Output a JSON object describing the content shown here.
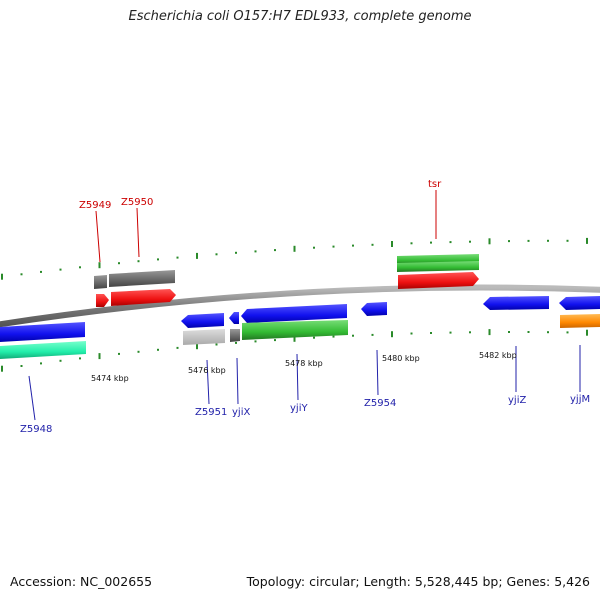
{
  "title": "Escherichia coli O157:H7 EDL933, complete genome",
  "footer": {
    "accession": "Accession: NC_002655",
    "info": "Topology: circular; Length: 5,528,445 bp; Genes: 5,426"
  },
  "scale_labels": [
    "5474 kbp",
    "5476 kbp",
    "5478 kbp",
    "5480 kbp",
    "5482 kbp"
  ],
  "gene_labels_top": [
    "Z5949",
    "Z5950",
    "tsr"
  ],
  "gene_labels_bottom": [
    "Z5948",
    "Z5951",
    "yjiX",
    "yjiY",
    "Z5954",
    "yjiZ",
    "yjjM"
  ],
  "colors": {
    "backbone": "#8a8a8a",
    "tick": "#2a8a2a",
    "cds_forward": "#ee1111",
    "cds_reverse": "#1111ee",
    "gene_forward": "#666666",
    "gene_reverse": "#bbbbbb",
    "label_red": "#cc0000",
    "label_blue": "#2222aa",
    "green_feature": "#33bb33",
    "teal_feature": "#22eeaa",
    "orange_feature": "#ff8800"
  }
}
